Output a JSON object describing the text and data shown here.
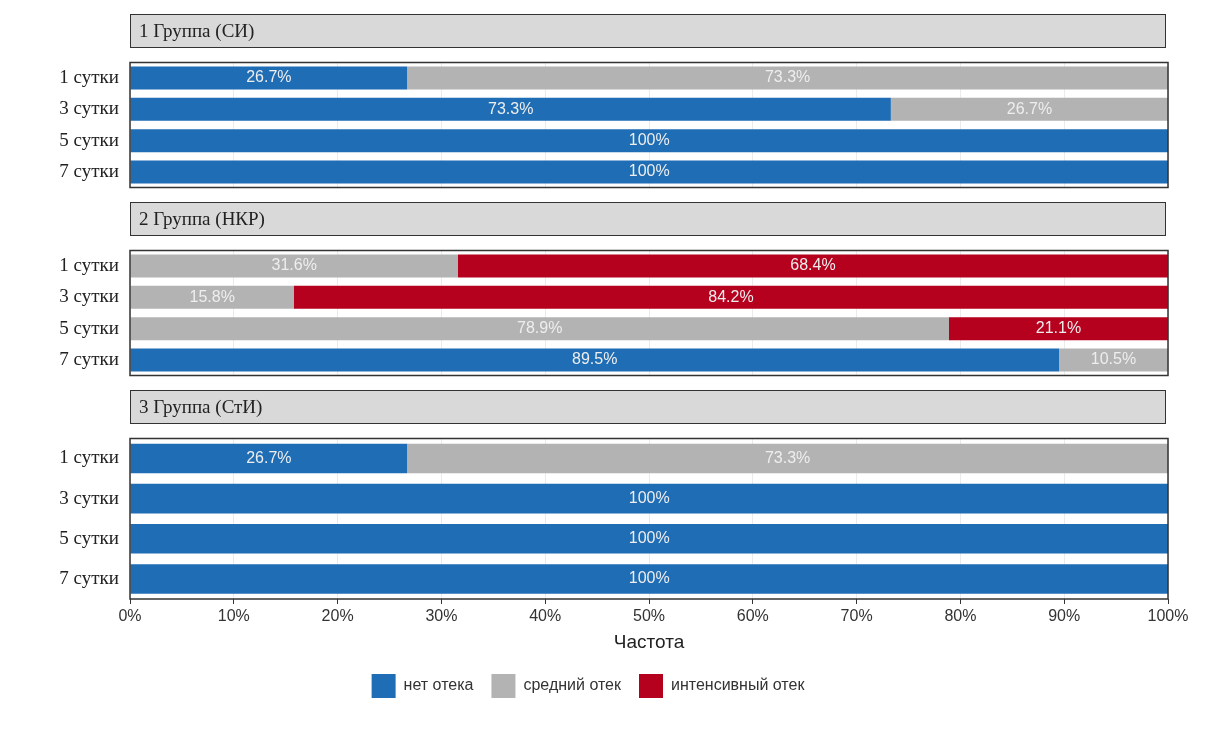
{
  "chart_data": [
    {
      "type": "bar",
      "orientation": "horizontal",
      "stacked": true,
      "title": "1 Группа (СИ)",
      "categories": [
        "1 сутки",
        "3 сутки",
        "5 сутки",
        "7 сутки"
      ],
      "series": [
        {
          "color": "#1f6db4",
          "values": [
            26.7,
            73.3,
            100,
            100
          ],
          "value_labels": [
            "26.7%",
            "73.3%",
            "100%",
            "100%"
          ]
        },
        {
          "color": "#b3b3b3",
          "values": [
            73.3,
            26.7,
            null,
            null
          ],
          "value_labels": [
            "73.3%",
            "26.7%",
            null,
            null
          ]
        }
      ],
      "xlim": [
        0,
        100
      ],
      "xticks": [
        0,
        10,
        20,
        30,
        40,
        50,
        60,
        70,
        80,
        90,
        100
      ],
      "grid": "x",
      "tick_labels": "y"
    },
    {
      "type": "bar",
      "orientation": "horizontal",
      "stacked": true,
      "title": "2 Группа (НКР)",
      "categories": [
        "1 сутки",
        "3 сутки",
        "5 сутки",
        "7 сутки"
      ],
      "series": [
        {
          "color": "#1f6db4",
          "values": [
            null,
            null,
            null,
            89.5
          ],
          "value_labels": [
            null,
            null,
            null,
            "89.5%"
          ]
        },
        {
          "color": "#b3b3b3",
          "values": [
            31.6,
            15.8,
            78.9,
            10.5
          ],
          "value_labels": [
            "31.6%",
            "15.8%",
            "78.9%",
            "10.5%"
          ]
        },
        {
          "color": "#b5001e",
          "values": [
            68.4,
            84.2,
            21.1,
            null
          ],
          "value_labels": [
            "68.4%",
            "84.2%",
            "21.1%",
            null
          ]
        }
      ],
      "xlim": [
        0,
        100
      ],
      "xticks": [
        0,
        10,
        20,
        30,
        40,
        50,
        60,
        70,
        80,
        90,
        100
      ],
      "grid": "x",
      "tick_labels": "y"
    },
    {
      "type": "bar",
      "orientation": "horizontal",
      "stacked": true,
      "title": "3 Группа (СтИ)",
      "xlabel": "Частота",
      "categories": [
        "1 сутки",
        "3 сутки",
        "5 сутки",
        "7 сутки"
      ],
      "series": [
        {
          "name": "нет отека",
          "color": "#1f6db4",
          "values": [
            26.7,
            100,
            100,
            100
          ],
          "value_labels": [
            "26.7%",
            "100%",
            "100%",
            "100%"
          ]
        },
        {
          "name": "средний отек",
          "color": "#b3b3b3",
          "values": [
            73.3,
            null,
            null,
            null
          ],
          "value_labels": [
            "73.3%",
            null,
            null,
            null
          ]
        },
        {
          "name": "интенсивный отек",
          "color": "#b5001e",
          "values": [
            null,
            null,
            null,
            null
          ],
          "value_labels": [
            null,
            null,
            null,
            null
          ]
        }
      ],
      "xlim": [
        0,
        100
      ],
      "xticks": [
        {
          "value": 0,
          "label": "0%"
        },
        {
          "value": 10,
          "label": "10%"
        },
        {
          "value": 20,
          "label": "20%"
        },
        {
          "value": 30,
          "label": "30%"
        },
        {
          "value": 40,
          "label": "40%"
        },
        {
          "value": 50,
          "label": "50%"
        },
        {
          "value": 60,
          "label": "60%"
        },
        {
          "value": 70,
          "label": "70%"
        },
        {
          "value": 80,
          "label": "80%"
        },
        {
          "value": 90,
          "label": "90%"
        },
        {
          "value": 100,
          "label": "100%"
        }
      ],
      "grid": "x",
      "legend": "bottom"
    }
  ]
}
